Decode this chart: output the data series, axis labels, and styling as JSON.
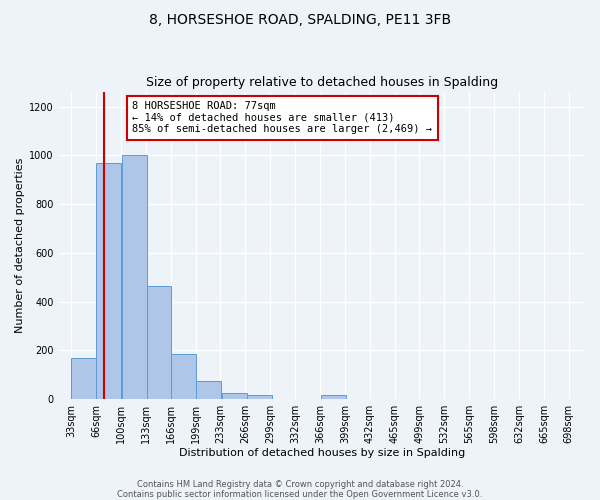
{
  "title": "8, HORSESHOE ROAD, SPALDING, PE11 3FB",
  "subtitle": "Size of property relative to detached houses in Spalding",
  "xlabel": "Distribution of detached houses by size in Spalding",
  "ylabel": "Number of detached properties",
  "bar_left_edges": [
    33,
    66,
    100,
    133,
    166,
    199,
    233,
    266,
    299,
    332,
    365,
    398,
    431,
    464,
    497,
    530,
    563,
    596,
    629,
    662
  ],
  "bar_heights": [
    170,
    970,
    1000,
    465,
    185,
    75,
    25,
    15,
    0,
    0,
    15,
    0,
    0,
    0,
    0,
    0,
    0,
    0,
    0,
    0
  ],
  "bin_width": 33,
  "bar_color": "#aec6e8",
  "bar_edge_color": "#5b9bd5",
  "vline_x": 77,
  "vline_color": "#cc0000",
  "annotation_line1": "8 HORSESHOE ROAD: 77sqm",
  "annotation_line2": "← 14% of detached houses are smaller (413)",
  "annotation_line3": "85% of semi-detached houses are larger (2,469) →",
  "ylim": [
    0,
    1260
  ],
  "yticks": [
    0,
    200,
    400,
    600,
    800,
    1000,
    1200
  ],
  "xtick_labels": [
    "33sqm",
    "66sqm",
    "100sqm",
    "133sqm",
    "166sqm",
    "199sqm",
    "233sqm",
    "266sqm",
    "299sqm",
    "332sqm",
    "366sqm",
    "399sqm",
    "432sqm",
    "465sqm",
    "499sqm",
    "532sqm",
    "565sqm",
    "598sqm",
    "632sqm",
    "665sqm",
    "698sqm"
  ],
  "xlim_left": 16.5,
  "xlim_right": 714.5,
  "footer_line1": "Contains HM Land Registry data © Crown copyright and database right 2024.",
  "footer_line2": "Contains public sector information licensed under the Open Government Licence v3.0.",
  "bg_color": "#eef2f9",
  "grid_color": "#ffffff",
  "title_fontsize": 10,
  "subtitle_fontsize": 9,
  "axis_label_fontsize": 8,
  "tick_fontsize": 7,
  "footer_fontsize": 6,
  "annotation_fontsize": 7.5
}
